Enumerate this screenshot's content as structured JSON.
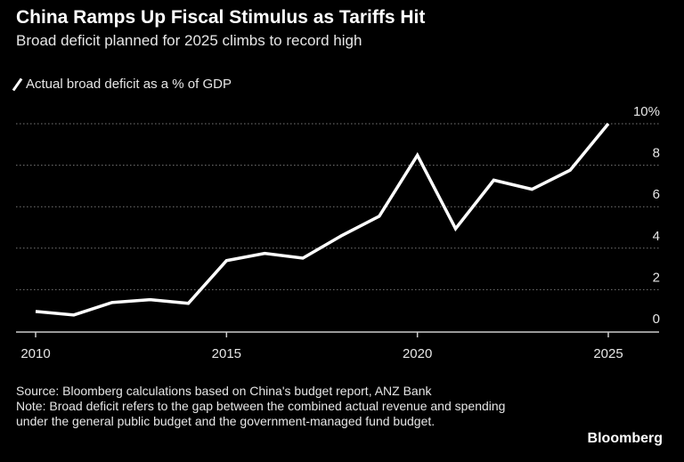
{
  "chart_data": {
    "type": "line",
    "title": "China Ramps Up Fiscal Stimulus as Tariffs Hit",
    "subtitle": "Broad deficit planned for 2025 climbs to record high",
    "series": [
      {
        "name": "Actual broad deficit as a % of GDP",
        "color": "#ffffff",
        "x": [
          2010,
          2011,
          2012,
          2013,
          2014,
          2015,
          2016,
          2017,
          2018,
          2019,
          2020,
          2021,
          2022,
          2023,
          2024,
          2025
        ],
        "values": [
          0.95,
          0.78,
          1.38,
          1.52,
          1.34,
          3.4,
          3.75,
          3.52,
          4.59,
          5.54,
          8.48,
          4.94,
          7.28,
          6.84,
          7.76,
          10.0
        ]
      }
    ],
    "xlim": [
      2009.5,
      2026.3
    ],
    "ylim": [
      0,
      10
    ],
    "x_ticks": [
      "2010",
      "2015",
      "2020",
      "2025"
    ],
    "y_ticks": [
      "0",
      "2",
      "4",
      "6",
      "8",
      "10%"
    ],
    "grid": "horizontal dotted",
    "legend_position": "top-left",
    "source": "Source: Bloomberg calculations based on China's budget report, ANZ Bank",
    "note": "Note: Broad deficit refers to the gap between the combined actual revenue and spending under the general public budget and the government-managed fund budget.",
    "brand": "Bloomberg"
  }
}
